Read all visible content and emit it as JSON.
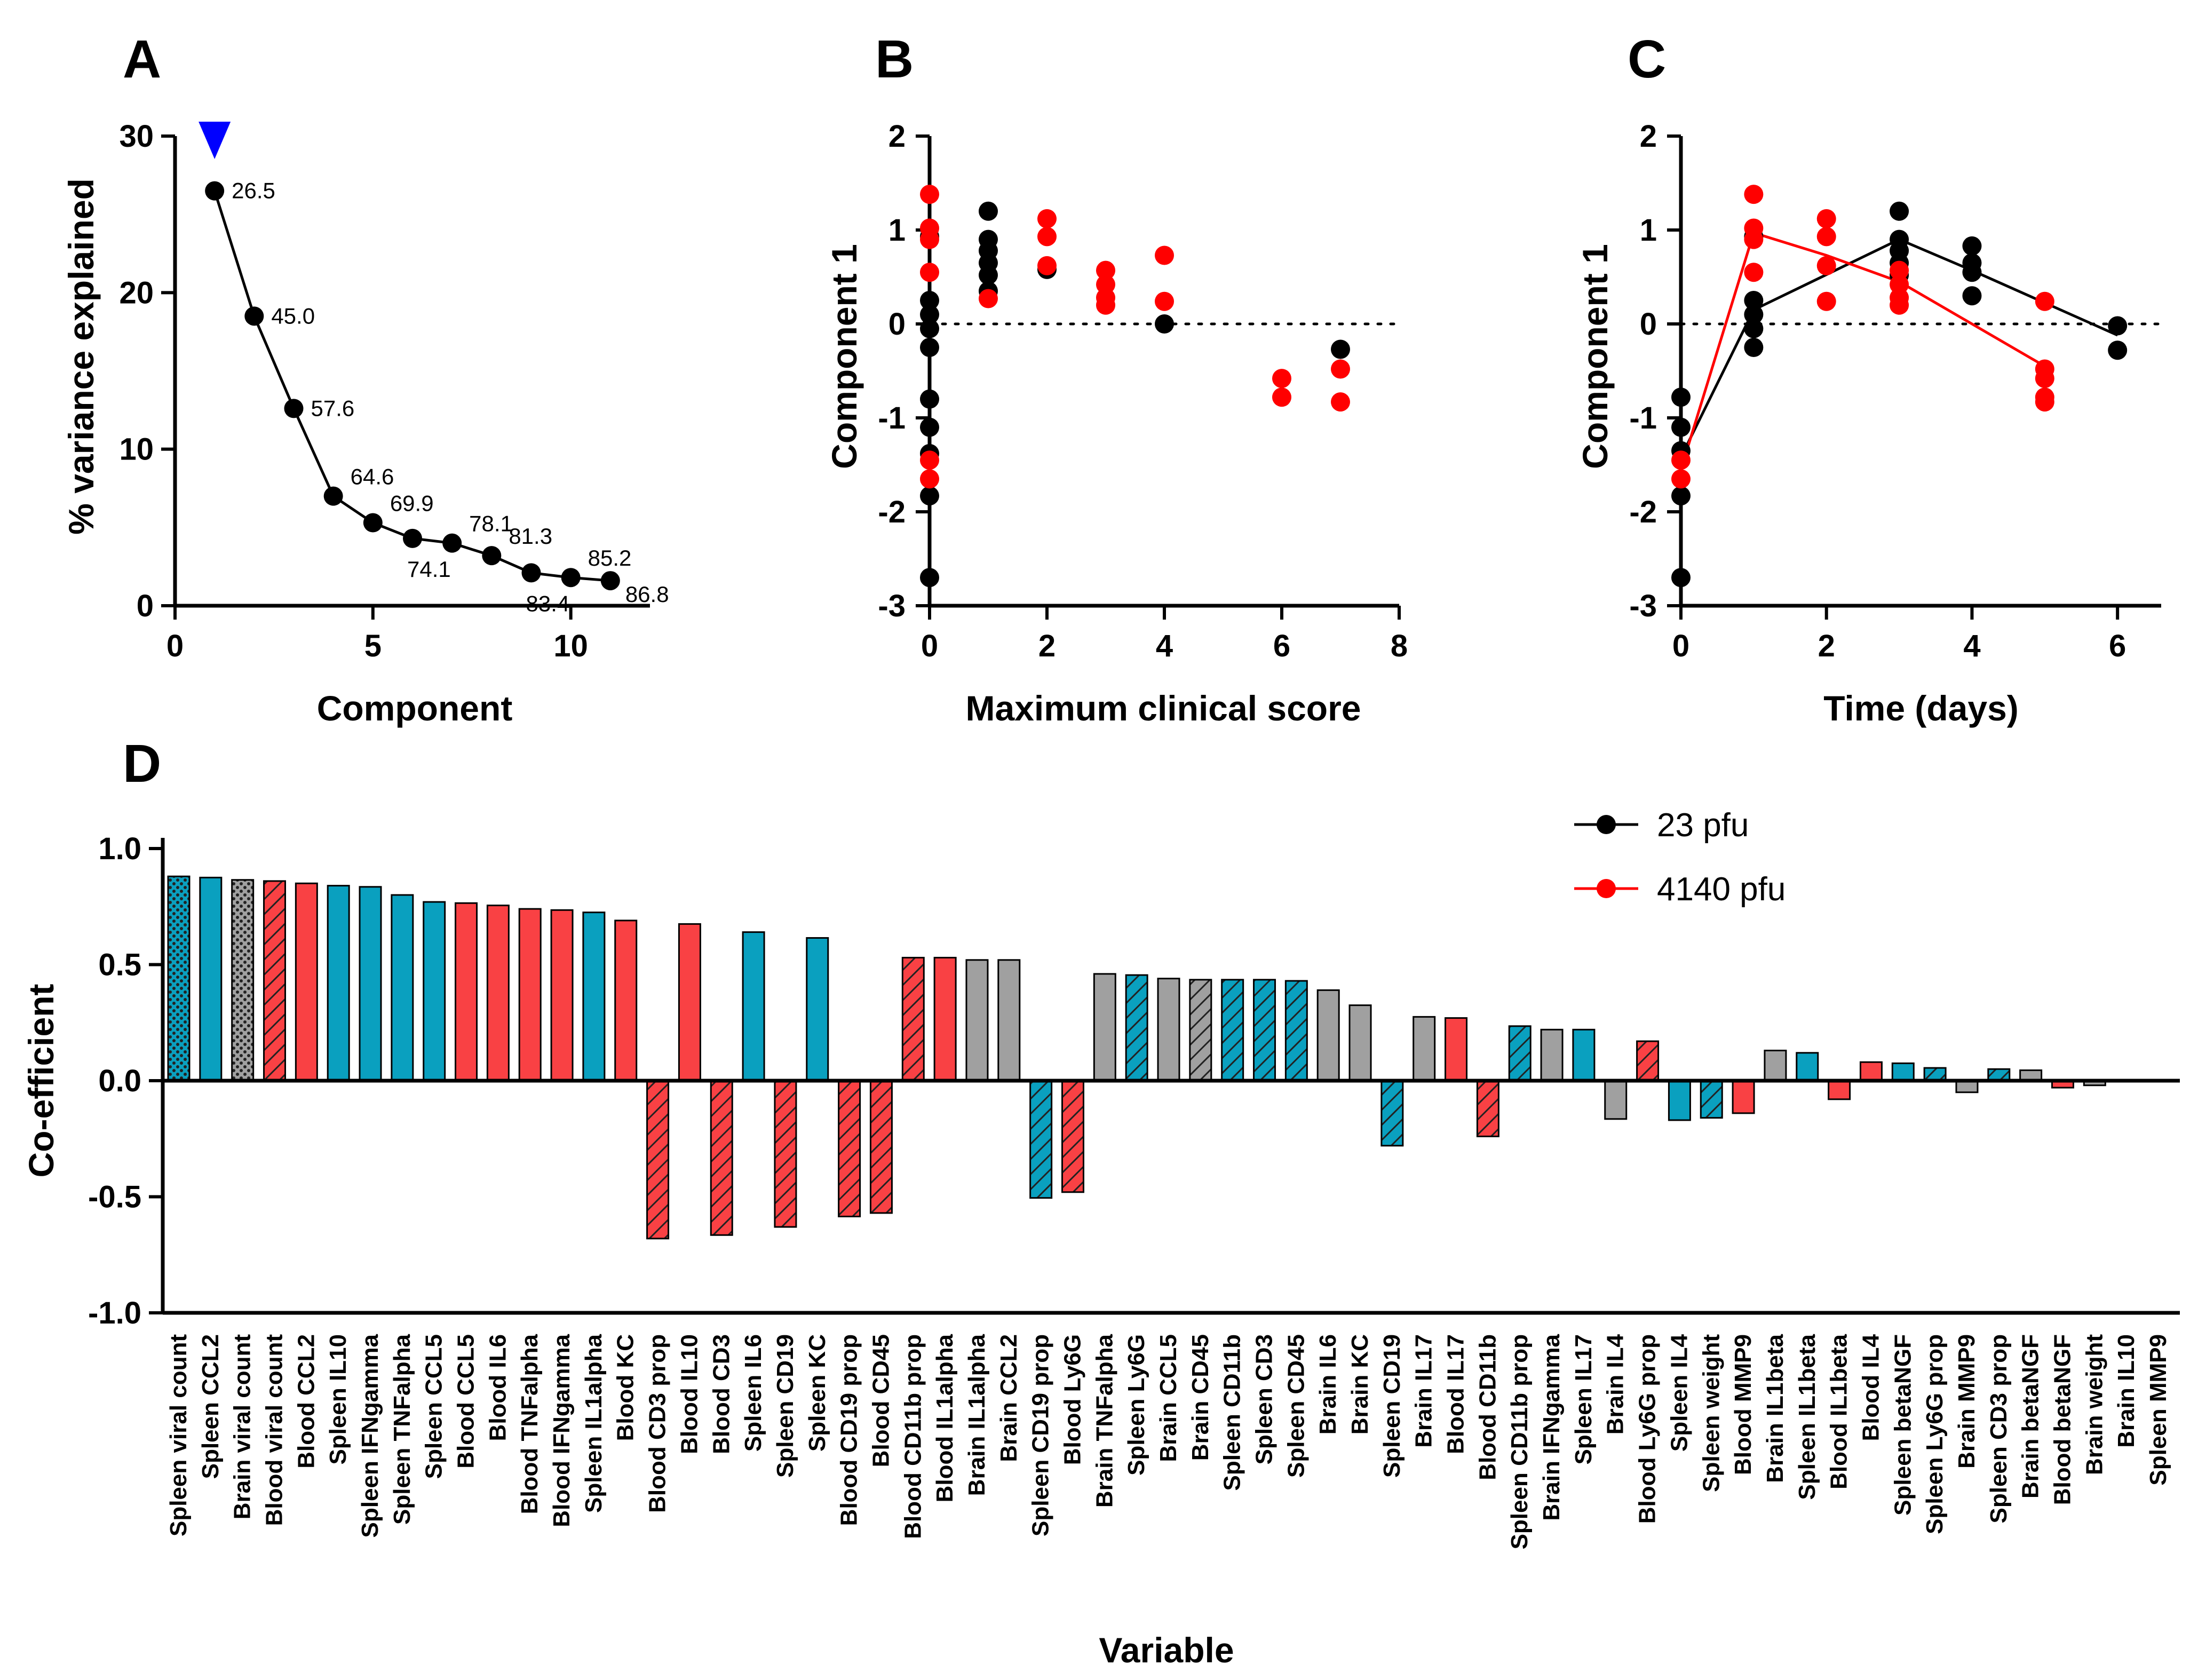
{
  "panel_letters": [
    "A",
    "B",
    "C",
    "D"
  ],
  "colors": {
    "black_series": "#000000",
    "red_series": "#ff0000",
    "blood": "#f94144",
    "spleen": "#0aa0bf",
    "brain": "#a0a0a0",
    "arrow": "#0000ff"
  },
  "legend": [
    {
      "label": "23 pfu",
      "color": "#000000"
    },
    {
      "label": "4140 pfu",
      "color": "#ff0000"
    }
  ],
  "chart_data": [
    {
      "panel": "A",
      "type": "line",
      "xlabel": "Component",
      "ylabel": "% variance explained",
      "xlim": [
        0,
        12
      ],
      "ylim": [
        0,
        30
      ],
      "xticks": [
        0,
        5,
        10
      ],
      "yticks": [
        0,
        10,
        20,
        30
      ],
      "x": [
        1,
        2,
        3,
        4,
        5,
        6,
        7,
        8,
        9,
        10,
        11
      ],
      "y": [
        26.5,
        18.5,
        12.6,
        7.0,
        5.3,
        4.3,
        4.0,
        3.2,
        2.1,
        1.8,
        1.6
      ],
      "annotations": [
        {
          "index": 0,
          "label": "26.5",
          "pos": "right"
        },
        {
          "index": 1,
          "label": "45.0",
          "pos": "right"
        },
        {
          "index": 2,
          "label": "57.6",
          "pos": "right"
        },
        {
          "index": 3,
          "label": "64.6",
          "pos": "upper-right"
        },
        {
          "index": 4,
          "label": "69.9",
          "pos": "upper-right"
        },
        {
          "index": 5,
          "label": "74.1",
          "pos": "below"
        },
        {
          "index": 6,
          "label": "78.1",
          "pos": "upper-right"
        },
        {
          "index": 7,
          "label": "81.3",
          "pos": "upper-right"
        },
        {
          "index": 8,
          "label": "83.4",
          "pos": "below"
        },
        {
          "index": 9,
          "label": "85.2",
          "pos": "upper-right"
        },
        {
          "index": 10,
          "label": "86.8",
          "pos": "below-right"
        }
      ],
      "arrow_at_component": 1
    },
    {
      "panel": "B",
      "type": "scatter",
      "xlabel": "Maximum clinical score",
      "ylabel": "Component 1",
      "xlim": [
        0,
        8
      ],
      "ylim": [
        -3,
        2
      ],
      "xticks": [
        0,
        2,
        4,
        6,
        8
      ],
      "yticks": [
        -3,
        -2,
        -1,
        0,
        1,
        2
      ],
      "series": [
        {
          "name": "23 pfu",
          "color": "#000000",
          "points": [
            [
              0,
              0.93
            ],
            [
              0,
              0.25
            ],
            [
              0,
              0.1
            ],
            [
              0,
              -0.05
            ],
            [
              0,
              -0.25
            ],
            [
              0,
              -0.8
            ],
            [
              0,
              -1.1
            ],
            [
              0,
              -1.38
            ],
            [
              0,
              -1.83
            ],
            [
              0,
              -2.7
            ],
            [
              1,
              1.2
            ],
            [
              1,
              0.9
            ],
            [
              1,
              0.78
            ],
            [
              1,
              0.65
            ],
            [
              1,
              0.52
            ],
            [
              1,
              0.35
            ],
            [
              2,
              0.58
            ],
            [
              4,
              0.0
            ],
            [
              7,
              -0.27
            ]
          ]
        },
        {
          "name": "4140 pfu",
          "color": "#ff0000",
          "points": [
            [
              0,
              1.38
            ],
            [
              0,
              1.02
            ],
            [
              0,
              0.9
            ],
            [
              0,
              0.55
            ],
            [
              0,
              -1.45
            ],
            [
              0,
              -1.65
            ],
            [
              1,
              0.27
            ],
            [
              2,
              1.12
            ],
            [
              2,
              0.93
            ],
            [
              2,
              0.62
            ],
            [
              3,
              0.57
            ],
            [
              3,
              0.42
            ],
            [
              3,
              0.28
            ],
            [
              3,
              0.2
            ],
            [
              4,
              0.73
            ],
            [
              4,
              0.24
            ],
            [
              6,
              -0.58
            ],
            [
              6,
              -0.78
            ],
            [
              7,
              -0.48
            ],
            [
              7,
              -0.83
            ]
          ]
        }
      ]
    },
    {
      "panel": "C",
      "type": "scatter",
      "xlabel": "Time (days)",
      "ylabel": "Component 1",
      "xlim": [
        0,
        6.6
      ],
      "ylim": [
        -3,
        2
      ],
      "xticks": [
        0,
        2,
        4,
        6
      ],
      "yticks": [
        -3,
        -2,
        -1,
        0,
        1,
        2
      ],
      "series": [
        {
          "name": "23 pfu",
          "color": "#000000",
          "points": [
            [
              0,
              -0.78
            ],
            [
              0,
              -1.1
            ],
            [
              0,
              -1.35
            ],
            [
              0,
              -1.83
            ],
            [
              0,
              -2.7
            ],
            [
              1,
              0.93
            ],
            [
              1,
              0.25
            ],
            [
              1,
              0.1
            ],
            [
              1,
              -0.05
            ],
            [
              1,
              -0.25
            ],
            [
              3,
              1.2
            ],
            [
              3,
              0.9
            ],
            [
              3,
              0.78
            ],
            [
              3,
              0.65
            ],
            [
              3,
              0.52
            ],
            [
              4,
              0.83
            ],
            [
              4,
              0.65
            ],
            [
              4,
              0.55
            ],
            [
              4,
              0.3
            ],
            [
              6,
              -0.02
            ],
            [
              6,
              -0.28
            ]
          ],
          "line": [
            [
              0,
              -1.42
            ],
            [
              1,
              0.15
            ],
            [
              3,
              0.9
            ],
            [
              4,
              0.57
            ],
            [
              6,
              -0.12
            ]
          ]
        },
        {
          "name": "4140 pfu",
          "color": "#ff0000",
          "points": [
            [
              0,
              -1.45
            ],
            [
              0,
              -1.65
            ],
            [
              1,
              1.38
            ],
            [
              1,
              1.02
            ],
            [
              1,
              0.9
            ],
            [
              1,
              0.55
            ],
            [
              2,
              1.12
            ],
            [
              2,
              0.93
            ],
            [
              2,
              0.62
            ],
            [
              2,
              0.24
            ],
            [
              3,
              0.57
            ],
            [
              3,
              0.42
            ],
            [
              3,
              0.28
            ],
            [
              3,
              0.2
            ],
            [
              5,
              0.24
            ],
            [
              5,
              -0.48
            ],
            [
              5,
              -0.58
            ],
            [
              5,
              -0.78
            ],
            [
              5,
              -0.83
            ]
          ],
          "line": [
            [
              0,
              -1.55
            ],
            [
              1,
              0.97
            ],
            [
              2,
              0.73
            ],
            [
              3,
              0.45
            ],
            [
              5,
              -0.45
            ]
          ]
        }
      ]
    },
    {
      "panel": "D",
      "type": "bar",
      "xlabel": "Variable",
      "ylabel": "Co-efficient",
      "ylim": [
        -1.0,
        1.0
      ],
      "yticks": [
        -1.0,
        -0.5,
        0.0,
        0.5,
        1.0
      ],
      "ytick_labels": [
        "-1.0",
        "-0.5",
        "0.0",
        "0.5",
        "1.0"
      ],
      "categories": [
        "Spleen viral count",
        "Spleen CCL2",
        "Brain viral count",
        "Blood viral count",
        "Blood CCL2",
        "Spleen IL10",
        "Spleen IFNgamma",
        "Spleen TNFalpha",
        "Spleen CCL5",
        "Blood CCL5",
        "Blood IL6",
        "Blood TNFalpha",
        "Blood IFNgamma",
        "Spleen IL1alpha",
        "Blood KC",
        "Blood CD3 prop",
        "Blood IL10",
        "Blood CD3",
        "Spleen IL6",
        "Spleen CD19",
        "Spleen KC",
        "Blood CD19 prop",
        "Blood CD45",
        "Blood CD11b prop",
        "Blood IL1alpha",
        "Brain IL1alpha",
        "Brain CCL2",
        "Spleen CD19 prop",
        "Blood Ly6G",
        "Brain TNFalpha",
        "Spleen Ly6G",
        "Brain CCL5",
        "Brain CD45",
        "Spleen CD11b",
        "Spleen CD3",
        "Spleen CD45",
        "Brain IL6",
        "Brain KC",
        "Spleen CD19",
        "Brain IL17",
        "Blood IL17",
        "Blood CD11b",
        "Spleen CD11b prop",
        "Brain IFNgamma",
        "Spleen IL17",
        "Brain IL4",
        "Blood Ly6G prop",
        "Spleen IL4",
        "Spleen weight",
        "Blood MMP9",
        "Brain IL1beta",
        "Spleen IL1beta",
        "Blood IL1beta",
        "Blood IL4",
        "Spleen betaNGF",
        "Spleen Ly6G prop",
        "Brain MMP9",
        "Spleen CD3 prop",
        "Brain betaNGF",
        "Blood betaNGF",
        "Brain weight",
        "Brain IL10",
        "Spleen MMP9"
      ],
      "values": [
        0.88,
        0.875,
        0.865,
        0.86,
        0.85,
        0.84,
        0.835,
        0.8,
        0.77,
        0.765,
        0.755,
        0.74,
        0.735,
        0.725,
        0.69,
        -0.68,
        0.675,
        -0.665,
        0.64,
        -0.63,
        0.615,
        -0.585,
        -0.57,
        0.53,
        0.53,
        0.52,
        0.52,
        -0.505,
        -0.48,
        0.46,
        0.455,
        0.44,
        0.435,
        0.435,
        0.435,
        0.43,
        0.39,
        0.325,
        -0.28,
        0.275,
        0.27,
        -0.24,
        0.235,
        0.22,
        0.22,
        -0.165,
        0.17,
        -0.17,
        -0.16,
        -0.14,
        0.13,
        0.12,
        -0.08,
        0.08,
        0.075,
        0.055,
        -0.05,
        0.05,
        0.045,
        -0.03,
        -0.02,
        0.0,
        0.0
      ],
      "tissue": [
        "spleen",
        "spleen",
        "brain",
        "blood",
        "blood",
        "spleen",
        "spleen",
        "spleen",
        "spleen",
        "blood",
        "blood",
        "blood",
        "blood",
        "spleen",
        "blood",
        "blood",
        "blood",
        "blood",
        "spleen",
        "blood",
        "spleen",
        "blood",
        "blood",
        "blood",
        "blood",
        "brain",
        "brain",
        "spleen",
        "blood",
        "brain",
        "spleen",
        "brain",
        "brain",
        "spleen",
        "spleen",
        "spleen",
        "brain",
        "brain",
        "spleen",
        "brain",
        "blood",
        "blood",
        "spleen",
        "brain",
        "spleen",
        "brain",
        "blood",
        "spleen",
        "spleen",
        "blood",
        "brain",
        "spleen",
        "blood",
        "blood",
        "spleen",
        "spleen",
        "brain",
        "spleen",
        "brain",
        "blood",
        "brain",
        "brain",
        "spleen"
      ],
      "pattern": [
        "dots",
        "solid",
        "dots",
        "hatch",
        "solid",
        "solid",
        "solid",
        "solid",
        "solid",
        "solid",
        "solid",
        "solid",
        "solid",
        "solid",
        "solid",
        "hatch",
        "solid",
        "hatch",
        "solid",
        "hatch",
        "solid",
        "hatch",
        "hatch",
        "hatch",
        "solid",
        "solid",
        "solid",
        "hatch",
        "hatch",
        "solid",
        "hatch",
        "solid",
        "hatch",
        "hatch",
        "hatch",
        "hatch",
        "solid",
        "solid",
        "hatch",
        "solid",
        "solid",
        "hatch",
        "hatch",
        "solid",
        "solid",
        "solid",
        "hatch",
        "solid",
        "hatch",
        "solid",
        "solid",
        "solid",
        "solid",
        "solid",
        "solid",
        "hatch",
        "solid",
        "hatch",
        "solid",
        "solid",
        "solid",
        "solid",
        "solid"
      ]
    }
  ]
}
